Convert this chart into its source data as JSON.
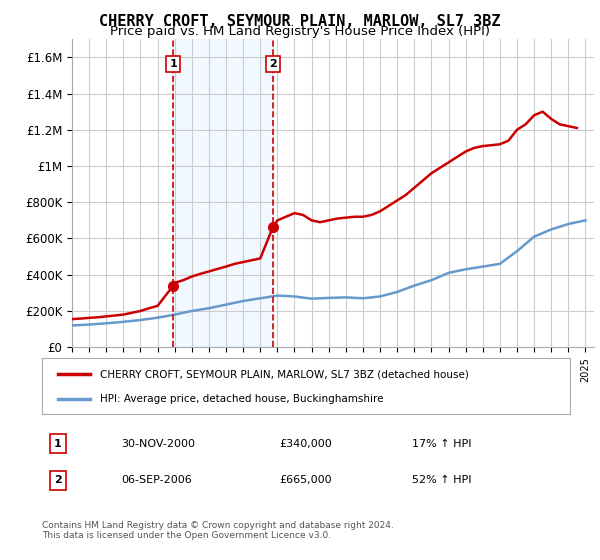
{
  "title": "CHERRY CROFT, SEYMOUR PLAIN, MARLOW, SL7 3BZ",
  "subtitle": "Price paid vs. HM Land Registry's House Price Index (HPI)",
  "title_fontsize": 11,
  "subtitle_fontsize": 9.5,
  "background_color": "#ffffff",
  "plot_bg_color": "#ffffff",
  "grid_color": "#cccccc",
  "ylim": [
    0,
    1700000
  ],
  "yticks": [
    0,
    200000,
    400000,
    600000,
    800000,
    1000000,
    1200000,
    1400000,
    1600000
  ],
  "ytick_labels": [
    "£0",
    "£200K",
    "£400K",
    "£600K",
    "£800K",
    "£1M",
    "£1.2M",
    "£1.4M",
    "£1.6M"
  ],
  "xlim_start": 1995.0,
  "xlim_end": 2025.5,
  "years": [
    1995,
    1996,
    1997,
    1998,
    1999,
    2000,
    2001,
    2002,
    2003,
    2004,
    2005,
    2006,
    2007,
    2008,
    2009,
    2010,
    2011,
    2012,
    2013,
    2014,
    2015,
    2016,
    2017,
    2018,
    2019,
    2020,
    2021,
    2022,
    2023,
    2024,
    2025
  ],
  "hpi_values": [
    120000,
    125000,
    132000,
    140000,
    150000,
    163000,
    180000,
    200000,
    215000,
    235000,
    255000,
    270000,
    285000,
    280000,
    268000,
    272000,
    275000,
    270000,
    280000,
    305000,
    340000,
    370000,
    410000,
    430000,
    445000,
    460000,
    530000,
    610000,
    650000,
    680000,
    700000
  ],
  "price_paid_years": [
    1995.0,
    1995.5,
    1996.0,
    1996.5,
    1997.0,
    1997.5,
    1998.0,
    1998.5,
    1999.0,
    1999.5,
    2000.0,
    2000.917,
    2001.0,
    2001.5,
    2002.0,
    2002.5,
    2003.0,
    2003.5,
    2004.0,
    2004.5,
    2005.0,
    2005.5,
    2006.0,
    2006.75,
    2007.0,
    2007.5,
    2008.0,
    2008.5,
    2009.0,
    2009.5,
    2010.0,
    2010.5,
    2011.0,
    2011.5,
    2012.0,
    2012.5,
    2013.0,
    2013.5,
    2014.0,
    2014.5,
    2015.0,
    2015.5,
    2016.0,
    2016.5,
    2017.0,
    2017.5,
    2018.0,
    2018.5,
    2019.0,
    2019.5,
    2020.0,
    2020.5,
    2021.0,
    2021.5,
    2022.0,
    2022.5,
    2023.0,
    2023.5,
    2024.0,
    2024.5
  ],
  "price_paid_values": [
    155000,
    158000,
    162000,
    165000,
    170000,
    175000,
    180000,
    190000,
    200000,
    215000,
    228000,
    340000,
    355000,
    370000,
    390000,
    405000,
    418000,
    432000,
    445000,
    460000,
    470000,
    480000,
    490000,
    665000,
    700000,
    720000,
    740000,
    730000,
    700000,
    690000,
    700000,
    710000,
    715000,
    720000,
    720000,
    730000,
    750000,
    780000,
    810000,
    840000,
    880000,
    920000,
    960000,
    990000,
    1020000,
    1050000,
    1080000,
    1100000,
    1110000,
    1115000,
    1120000,
    1140000,
    1200000,
    1230000,
    1280000,
    1300000,
    1260000,
    1230000,
    1220000,
    1210000
  ],
  "sale1_year": 2000.917,
  "sale1_price": 340000,
  "sale1_label": "1",
  "sale1_date": "30-NOV-2000",
  "sale1_pct": "17% ↑ HPI",
  "sale2_year": 2006.75,
  "sale2_price": 665000,
  "sale2_label": "2",
  "sale2_date": "06-SEP-2006",
  "sale2_pct": "52% ↑ HPI",
  "price_line_color": "#cc0000",
  "hpi_line_color": "#6699cc",
  "vline_color": "#cc0000",
  "sale_marker_color": "#cc0000",
  "legend_label_price": "CHERRY CROFT, SEYMOUR PLAIN, MARLOW, SL7 3BZ (detached house)",
  "legend_label_hpi": "HPI: Average price, detached house, Buckinghamshire",
  "footer": "Contains HM Land Registry data © Crown copyright and database right 2024.\nThis data is licensed under the Open Government Licence v3.0.",
  "shade_color": "#ddeeff",
  "shade_alpha": 0.4
}
